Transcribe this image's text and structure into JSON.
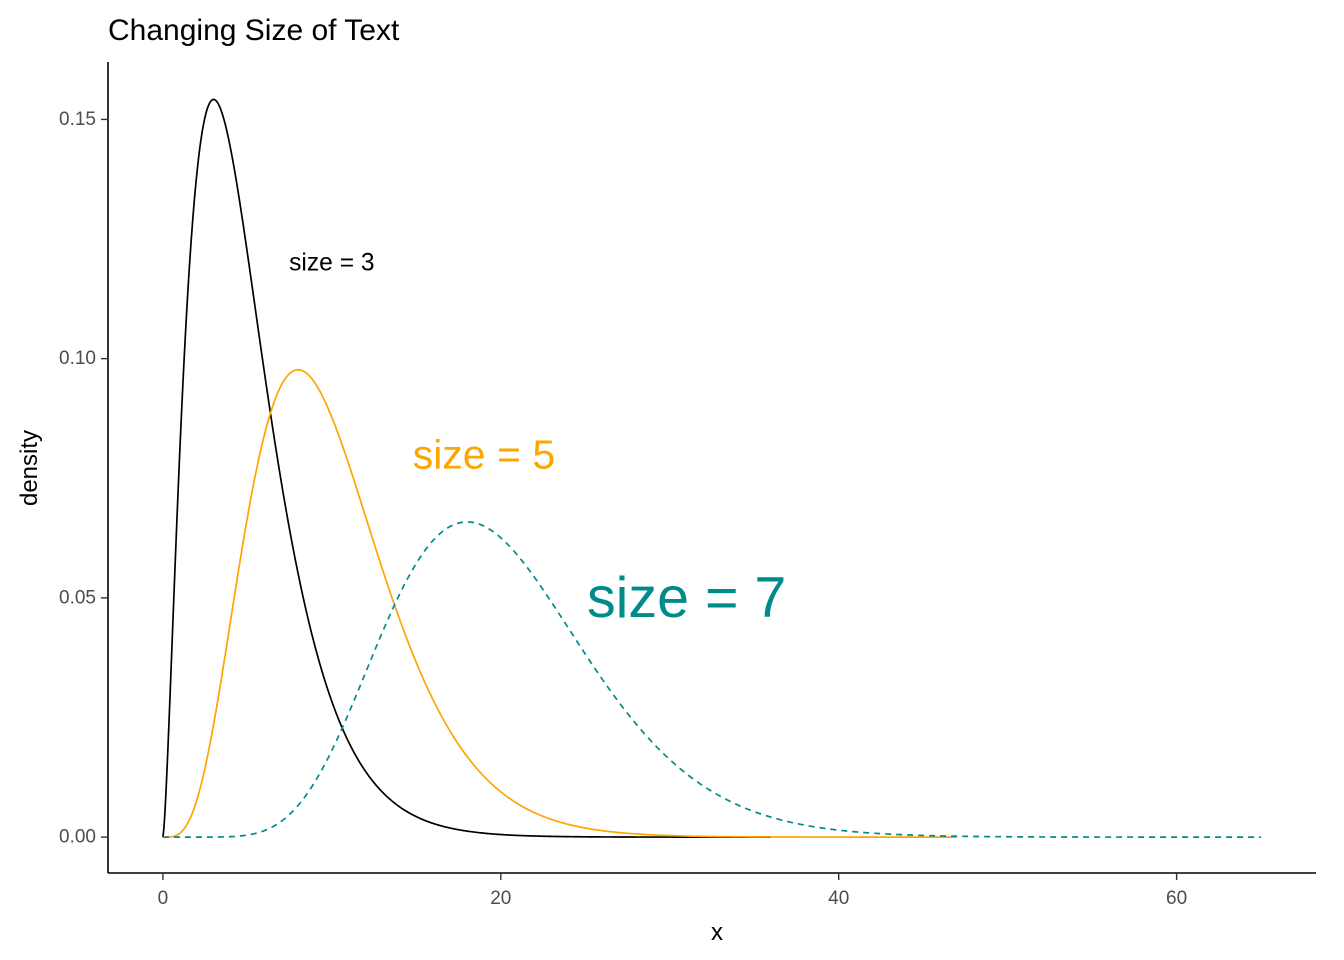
{
  "chart_data": {
    "type": "line",
    "title": "Changing Size of Text",
    "xlabel": "x",
    "ylabel": "density",
    "xlim": [
      -3.25,
      68.25
    ],
    "ylim": [
      -0.0075,
      0.162
    ],
    "x_ticks": [
      0,
      20,
      40,
      60
    ],
    "x_tick_labels": [
      "0",
      "20",
      "40",
      "60"
    ],
    "y_ticks": [
      0,
      0.05,
      0.1,
      0.15
    ],
    "y_tick_labels": [
      "0.00",
      "0.05",
      "0.10",
      "0.15"
    ],
    "grid": false,
    "legend": "none",
    "series": [
      {
        "distribution": "chi-square",
        "df": 5,
        "x_range": [
          0,
          36
        ],
        "color": "#000000",
        "linetype": "solid",
        "peak": {
          "x": 3,
          "y": 0.154
        }
      },
      {
        "distribution": "chi-square",
        "df": 10,
        "x_range": [
          0,
          47
        ],
        "color": "#FFA500",
        "linetype": "solid",
        "peak": {
          "x": 8,
          "y": 0.0977
        }
      },
      {
        "distribution": "chi-square",
        "df": 20,
        "x_range": [
          0,
          65
        ],
        "color": "#008B8B",
        "linetype": "dashed",
        "peak": {
          "x": 18,
          "y": 0.0661
        }
      }
    ],
    "annotations": [
      {
        "text": "size = 3",
        "x": 10,
        "y": 0.12,
        "size": 3,
        "color": "#000000"
      },
      {
        "text": "size = 5",
        "x": 19,
        "y": 0.08,
        "size": 5,
        "color": "#FFA500"
      },
      {
        "text": "size = 7",
        "x": 31,
        "y": 0.05,
        "size": 7,
        "color": "#008B8B"
      }
    ]
  }
}
